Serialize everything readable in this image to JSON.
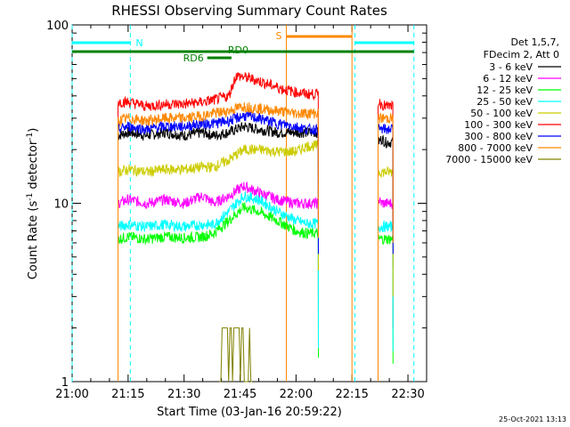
{
  "chart_data": {
    "type": "line",
    "title": "RHESSI Observing Summary Count Rates",
    "xlabel": "Start Time (03-Jan-16 20:59:22)",
    "ylabel_main": "Count Rate (s",
    "ylabel_sup1": "-1",
    "ylabel_mid": " detector",
    "ylabel_sup2": "-1",
    "ylabel_end": ")",
    "timestamp": "25-Oct-2021 13:13",
    "x_ticks": [
      "21:00",
      "21:15",
      "21:30",
      "21:45",
      "22:00",
      "22:15",
      "22:30"
    ],
    "x_tick_minutes": [
      0,
      15,
      30,
      45,
      60,
      75,
      90
    ],
    "x_range_minutes": [
      0,
      95
    ],
    "y_scale": "log",
    "ylim": [
      1,
      100
    ],
    "y_ticks": [
      "1",
      "10",
      "100"
    ],
    "y_tick_values": [
      1,
      10,
      100
    ],
    "legend_header": [
      "Det 1,5,7,",
      "FDecim 2, Att 0"
    ],
    "series": [
      {
        "name": "3 - 6 keV",
        "color": "#000000",
        "segments": [
          {
            "x": [
              12.3,
              15,
              20,
              25,
              30,
              35,
              38,
              42,
              46,
              50,
              55,
              60,
              63,
              66
            ],
            "y": [
              24,
              25,
              24,
              25,
              24,
              25,
              24,
              25,
              27,
              26,
              25,
              25,
              25,
              25
            ]
          },
          {
            "x": [
              82,
              83,
              84,
              85,
              86
            ],
            "y": [
              22,
              23,
              22,
              22,
              22
            ]
          }
        ]
      },
      {
        "name": "6 - 12 keV",
        "color": "#ff00ff",
        "segments": [
          {
            "x": [
              12.3,
              15,
              20,
              25,
              30,
              35,
              38,
              42,
              46,
              50,
              55,
              60,
              63,
              66
            ],
            "y": [
              10,
              10.5,
              10,
              10.5,
              10,
              11,
              10,
              11,
              12.5,
              11.5,
              10.5,
              10,
              10,
              10
            ]
          },
          {
            "x": [
              82,
              83,
              84,
              85,
              86
            ],
            "y": [
              10.5,
              10,
              10,
              10,
              10
            ]
          }
        ]
      },
      {
        "name": "12 - 25 keV",
        "color": "#00ff00",
        "segments": [
          {
            "x": [
              12.3,
              15,
              20,
              25,
              30,
              35,
              38,
              42,
              46,
              50,
              55,
              60,
              63,
              66
            ],
            "y": [
              6.3,
              6.5,
              6.3,
              6.5,
              6.4,
              6.5,
              6.8,
              8,
              9.5,
              9,
              8,
              7,
              6.8,
              6.8
            ]
          },
          {
            "x": [
              82,
              83,
              84,
              85,
              86
            ],
            "y": [
              6.3,
              6.3,
              6.3,
              6.3,
              6.3
            ]
          }
        ]
      },
      {
        "name": "25 - 50 keV",
        "color": "#00ffff",
        "segments": [
          {
            "x": [
              12.3,
              15,
              20,
              25,
              30,
              35,
              38,
              42,
              46,
              50,
              55,
              60,
              63,
              66
            ],
            "y": [
              7.4,
              7.6,
              7.4,
              7.6,
              7.4,
              7.6,
              7.6,
              9,
              11,
              10.5,
              9,
              8,
              7.7,
              7.7
            ]
          },
          {
            "x": [
              82,
              83,
              84,
              85,
              86
            ],
            "y": [
              7.4,
              7.4,
              7.4,
              7.4,
              7.4
            ]
          }
        ]
      },
      {
        "name": "50 - 100 keV",
        "color": "#cccc00",
        "segments": [
          {
            "x": [
              12.3,
              15,
              20,
              25,
              30,
              35,
              38,
              42,
              46,
              50,
              55,
              60,
              63,
              66
            ],
            "y": [
              15,
              15.5,
              15,
              15.5,
              15.5,
              16,
              16,
              17.5,
              20,
              20,
              19.5,
              19.5,
              21,
              21
            ]
          },
          {
            "x": [
              82,
              83,
              84,
              85,
              86
            ],
            "y": [
              15,
              15,
              15,
              15,
              15
            ]
          }
        ]
      },
      {
        "name": "100 - 300 keV",
        "color": "#ff0000",
        "segments": [
          {
            "x": [
              12.3,
              15,
              20,
              25,
              30,
              35,
              38,
              42,
              44,
              48,
              52,
              56,
              60,
              63,
              66
            ],
            "y": [
              37,
              37,
              35,
              36,
              36,
              37,
              38,
              40,
              52,
              50,
              47,
              44,
              42,
              41,
              41
            ]
          },
          {
            "x": [
              82,
              83,
              84,
              85,
              86
            ],
            "y": [
              37,
              36,
              35,
              35,
              35
            ]
          }
        ]
      },
      {
        "name": "300 - 800 keV",
        "color": "#0000ff",
        "segments": [
          {
            "x": [
              12.3,
              15,
              20,
              25,
              30,
              35,
              38,
              42,
              46,
              50,
              55,
              60,
              63,
              66
            ],
            "y": [
              26,
              27,
              26,
              27,
              27,
              28,
              28,
              29,
              31,
              30,
              28,
              27,
              26,
              26
            ]
          },
          {
            "x": [
              82,
              83,
              84,
              85,
              86
            ],
            "y": [
              26,
              26,
              26,
              26,
              26
            ]
          }
        ]
      },
      {
        "name": "800 - 7000 keV",
        "color": "#ff8800",
        "segments": [
          {
            "x": [
              12.3,
              15,
              20,
              25,
              30,
              35,
              38,
              42,
              46,
              50,
              55,
              60,
              63,
              66
            ],
            "y": [
              29,
              30,
              29,
              30,
              30,
              31,
              32,
              33,
              35,
              34,
              33,
              32,
              32,
              32
            ]
          },
          {
            "x": [
              82,
              83,
              84,
              85,
              86
            ],
            "y": [
              30,
              30,
              30,
              30,
              30
            ]
          }
        ]
      },
      {
        "name": "7000 - 15000 keV",
        "color": "#808000",
        "segments": [
          {
            "x": [
              39.5,
              41,
              42.5,
              44,
              45.5,
              47,
              48.5
            ],
            "y": [
              1,
              2,
              1,
              2,
              1,
              2,
              1
            ]
          }
        ]
      }
    ],
    "annotations": {
      "night_intervals": [
        {
          "label": "N",
          "x0": 0,
          "x1": 15.6,
          "color": "#00ffff"
        },
        {
          "label": "",
          "x0": 75.8,
          "x1": 91.6,
          "color": "#00ffff"
        }
      ],
      "saa_interval": {
        "label": "S",
        "x0": 57.4,
        "x1": 75,
        "color": "#ff8800"
      },
      "decimation_bar": {
        "label": "RD0",
        "x0": 0,
        "x1": 91.6,
        "color": "#008000"
      },
      "decimation_segment": {
        "label": "RD6",
        "x0": 36.2,
        "x1": 42.7,
        "color": "#008000"
      },
      "vertical_dashed_cyan": [
        0,
        15.6,
        75.8,
        91.6
      ]
    }
  }
}
